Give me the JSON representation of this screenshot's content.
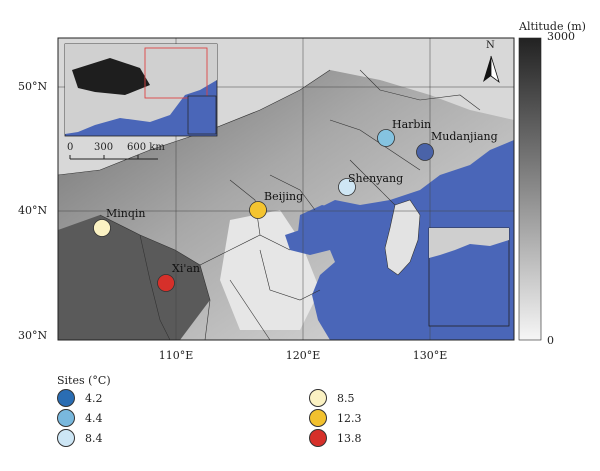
{
  "map": {
    "legend_title": "Altitude (m)",
    "altitude_max": "3000",
    "altitude_min": "0",
    "lat_ticks": [
      "50°N",
      "40°N",
      "30°N"
    ],
    "lon_ticks": [
      "110°E",
      "120°E",
      "130°E"
    ],
    "scale": {
      "l0": "0",
      "l1": "300",
      "l2": "600 km"
    },
    "north": "N",
    "colors": {
      "sea": "#4a66b8",
      "land_high": "#2a2a2a",
      "land_low": "#e8e8e8"
    },
    "cities": [
      {
        "name": "Harbin",
        "temp": 4.4,
        "color": "#85c3e0"
      },
      {
        "name": "Mudanjiang",
        "temp": 4.2,
        "color": "#4a63a8"
      },
      {
        "name": "Shenyang",
        "temp": 8.4,
        "color": "#cfe6f4"
      },
      {
        "name": "Beijing",
        "temp": 12.3,
        "color": "#f4c430"
      },
      {
        "name": "Minqin",
        "temp": 8.5,
        "color": "#fbf2c3"
      },
      {
        "name": "Xi'an",
        "temp": 13.8,
        "color": "#d6302a"
      }
    ]
  },
  "legend": {
    "title": "Sites (°C)",
    "items": [
      {
        "label": "4.2",
        "color": "#2a6db3"
      },
      {
        "label": "4.4",
        "color": "#79b8dd"
      },
      {
        "label": "8.4",
        "color": "#cde6f5"
      },
      {
        "label": "8.5",
        "color": "#fbf2c3"
      },
      {
        "label": "12.3",
        "color": "#f2c12e"
      },
      {
        "label": "13.8",
        "color": "#d6302a"
      }
    ]
  }
}
